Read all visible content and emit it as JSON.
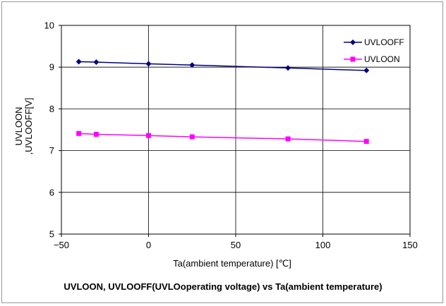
{
  "chart_data": {
    "type": "line",
    "title": "UVLOON, UVLOOFF(UVLOoperating voltage) vs Ta(ambient temperature)",
    "xlabel": "Ta(ambient temperature)  [℃]",
    "ylabel_lines": [
      "UVLOON",
      ",UVLOOFF[V]"
    ],
    "xlim": [
      -50,
      150
    ],
    "ylim": [
      5,
      10
    ],
    "xticks": [
      -50,
      0,
      50,
      100,
      150
    ],
    "xtick_labels": [
      "−50",
      "0",
      "50",
      "100",
      "150"
    ],
    "yticks": [
      5,
      6,
      7,
      8,
      9,
      10
    ],
    "ytick_labels": [
      "5",
      "6",
      "7",
      "8",
      "9",
      "10"
    ],
    "grid": true,
    "legend_position": "top-right",
    "series": [
      {
        "name": "UVLOOFF",
        "color": "#000080",
        "marker": "diamond",
        "x": [
          -40,
          -30,
          0,
          25,
          80,
          125
        ],
        "y": [
          9.13,
          9.12,
          9.08,
          9.05,
          8.98,
          8.92
        ]
      },
      {
        "name": "UVLOON",
        "color": "#ff00ff",
        "marker": "square",
        "x": [
          -40,
          -30,
          0,
          25,
          80,
          125
        ],
        "y": [
          7.41,
          7.39,
          7.36,
          7.33,
          7.28,
          7.22
        ]
      }
    ]
  }
}
